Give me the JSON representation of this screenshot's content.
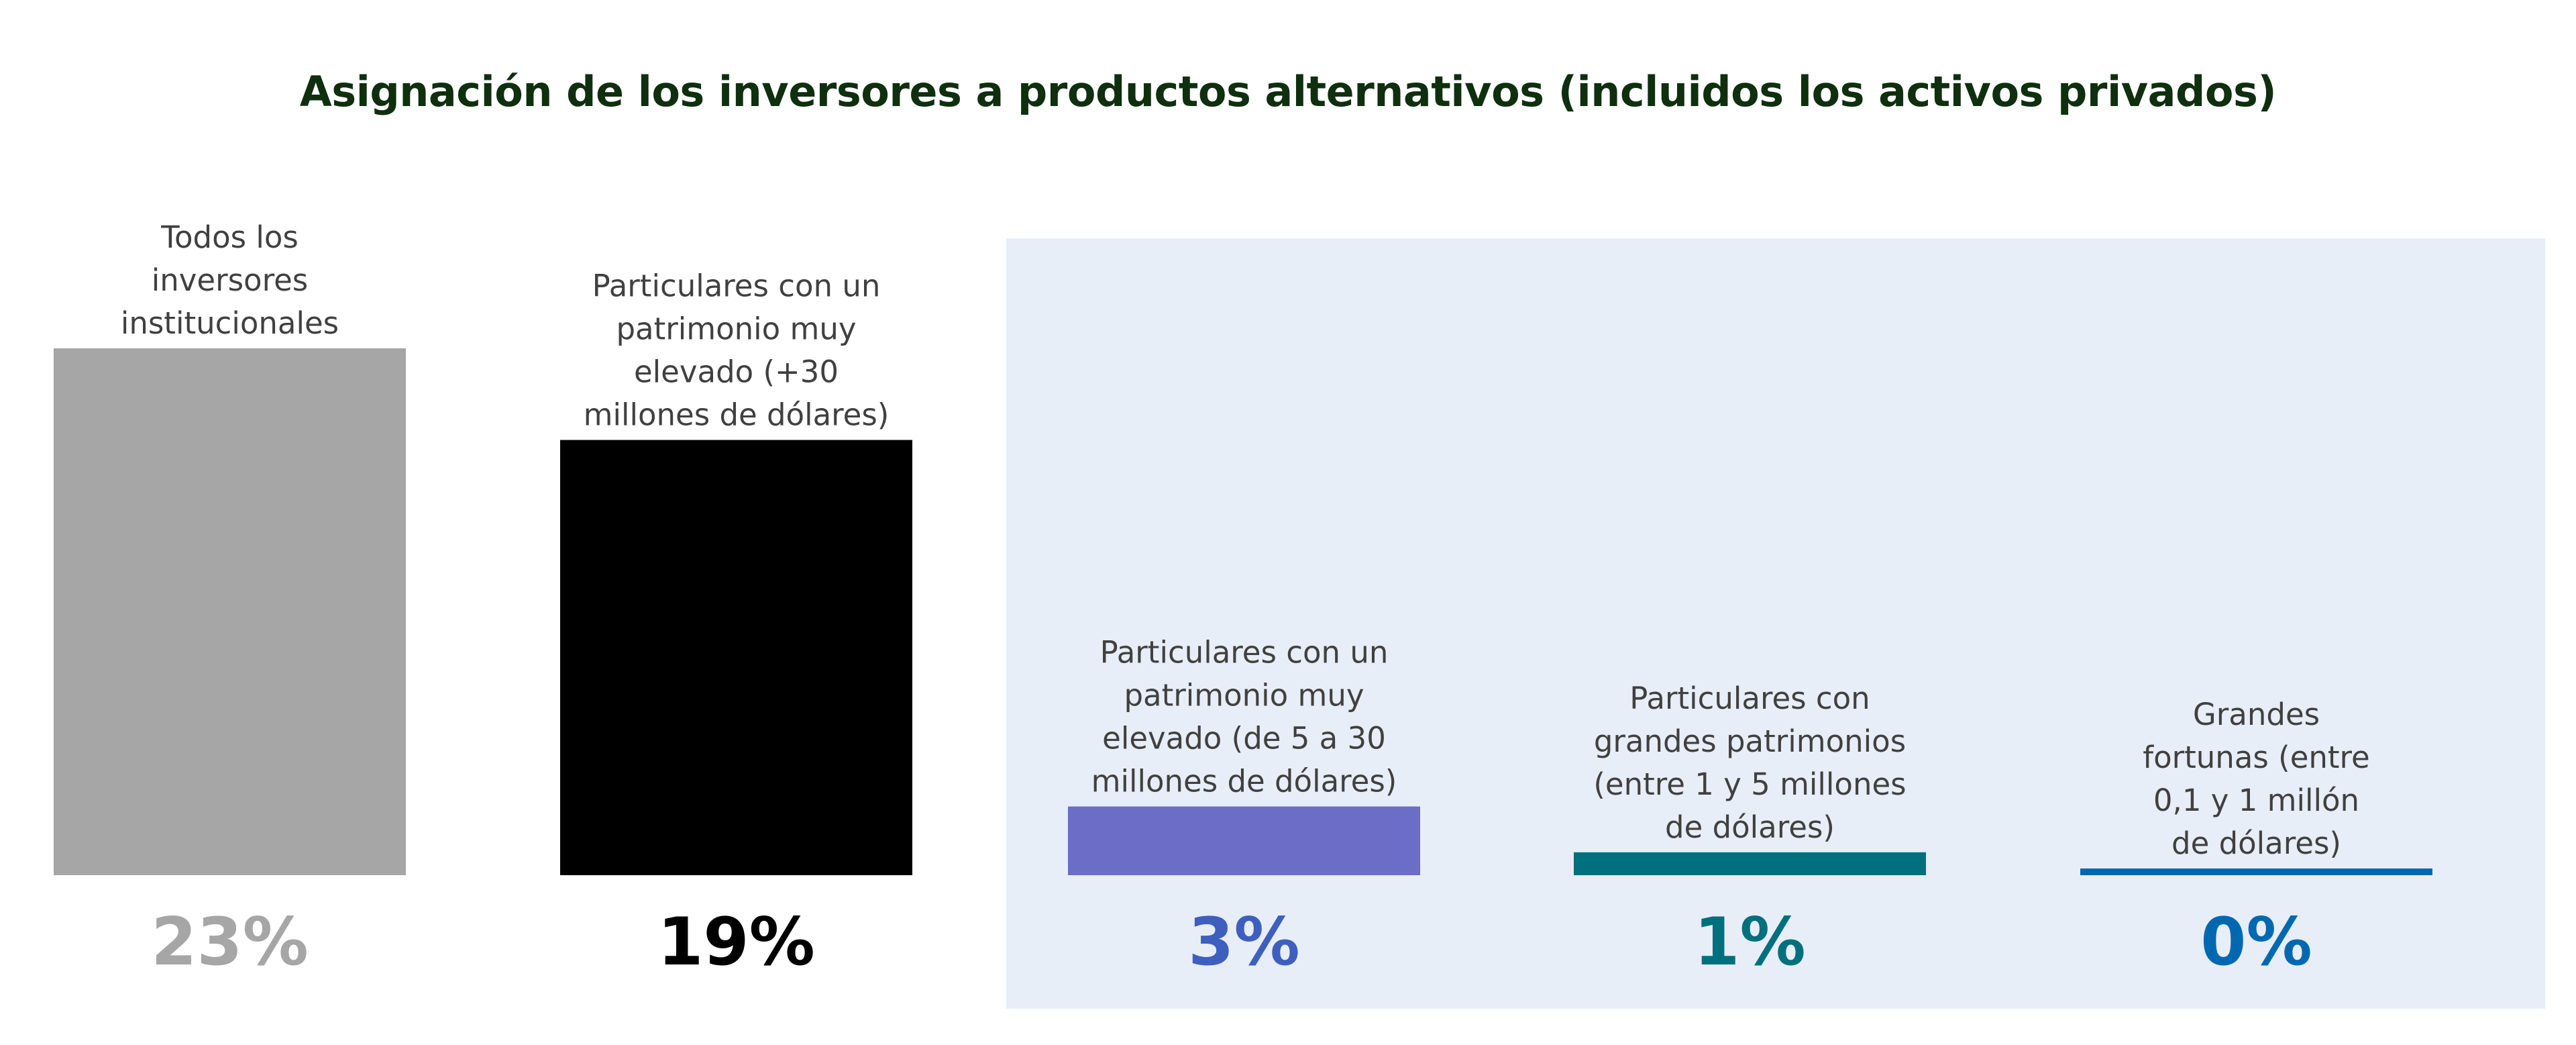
{
  "chart_data": {
    "type": "bar",
    "title": "Asignación de los inversores a productos alternativos (incluidos los activos privados)",
    "xlabel": "",
    "ylabel": "",
    "ylim": [
      0,
      23
    ],
    "grid": false,
    "legend": "none",
    "categories": [
      "Todos los inversores institucionales",
      "Particulares con un patrimonio muy elevado (+30 millones de dólares)",
      "Particulares con un patrimonio muy elevado (de 5 a 30 millones de dólares)",
      "Particulares con grandes patrimonios (entre 1 y 5 millones de dólares)",
      "Grandes fortunas (entre 0,1 y 1 millón de dólares)"
    ],
    "category_label_lines": [
      [
        "Todos los",
        "inversores",
        "institucionales"
      ],
      [
        "Particulares con un",
        "patrimonio muy",
        "elevado (+30",
        "millones de dólares)"
      ],
      [
        "Particulares con un",
        "patrimonio muy",
        "elevado (de 5 a 30",
        "millones de dólares)"
      ],
      [
        "Particulares con",
        "grandes patrimonios",
        "(entre 1 y 5 millones",
        "de dólares)"
      ],
      [
        "Grandes",
        "fortunas (entre",
        "0,1 y 1 millón",
        "de dólares)"
      ]
    ],
    "values": [
      23,
      19,
      3,
      1,
      0
    ],
    "value_labels": [
      "23%",
      "19%",
      "3%",
      "1%",
      "0%"
    ],
    "colors": [
      "#A6A6A6",
      "#000000",
      "#6B6DC6",
      "#006F7E",
      "#0068B1"
    ],
    "value_label_colors": [
      "#A6A6A6",
      "#000000",
      "#3F5FBE",
      "#006F7E",
      "#0068B1"
    ],
    "highlight_panel_color": "#E8EEF7",
    "title_color": "#0F2F0F",
    "category_label_color": "#404040"
  }
}
